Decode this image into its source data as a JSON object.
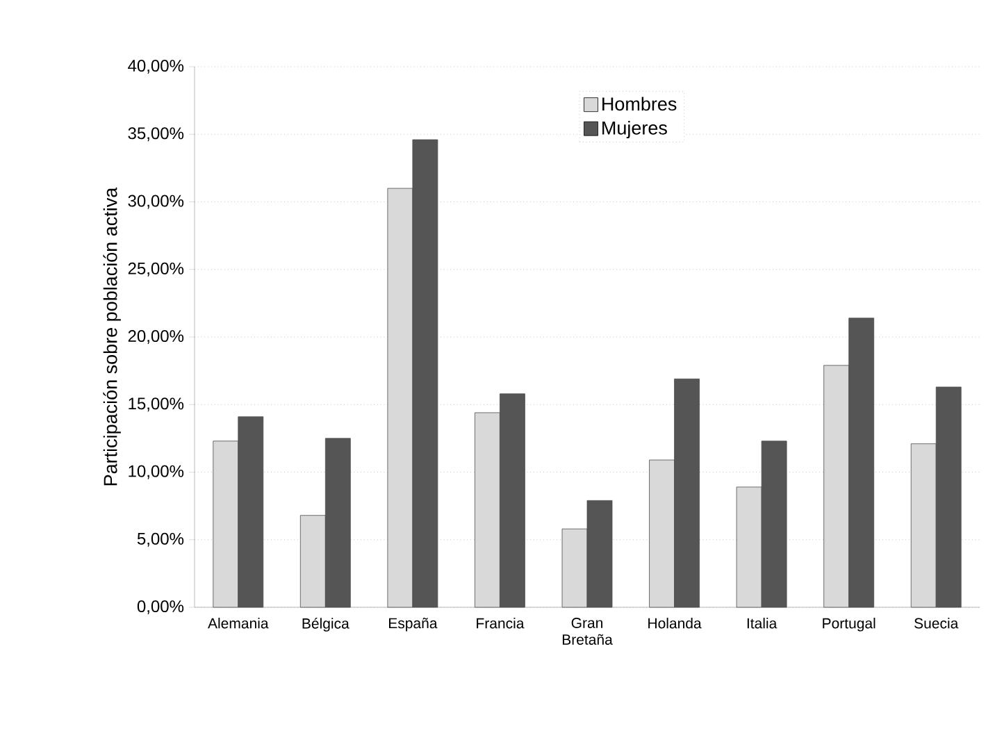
{
  "chart_data": {
    "type": "bar",
    "ylabel": "Participación sobre población activa",
    "categories": [
      "Alemania",
      "Bélgica",
      "España",
      "Francia",
      "Gran Bretaña",
      "Holanda",
      "Italia",
      "Portugal",
      "Suecia"
    ],
    "series": [
      {
        "name": "Hombres",
        "color": "#d9d9d9",
        "values": [
          12.3,
          6.8,
          31.0,
          14.4,
          5.8,
          10.9,
          8.9,
          17.9,
          12.1
        ]
      },
      {
        "name": "Mujeres",
        "color": "#555555",
        "values": [
          14.1,
          12.5,
          34.6,
          15.8,
          7.9,
          16.9,
          12.3,
          21.4,
          16.3
        ]
      }
    ],
    "ylim": [
      0,
      40
    ],
    "yticks": [
      {
        "value": 0,
        "label": "0,00%"
      },
      {
        "value": 5,
        "label": "5,00%"
      },
      {
        "value": 10,
        "label": "10,00%"
      },
      {
        "value": 15,
        "label": "15,00%"
      },
      {
        "value": 20,
        "label": "20,00%"
      },
      {
        "value": 25,
        "label": "25,00%"
      },
      {
        "value": 30,
        "label": "30,00%"
      },
      {
        "value": 35,
        "label": "35,00%"
      },
      {
        "value": 40,
        "label": "40,00%"
      }
    ],
    "grid": "y",
    "legend": "top"
  }
}
